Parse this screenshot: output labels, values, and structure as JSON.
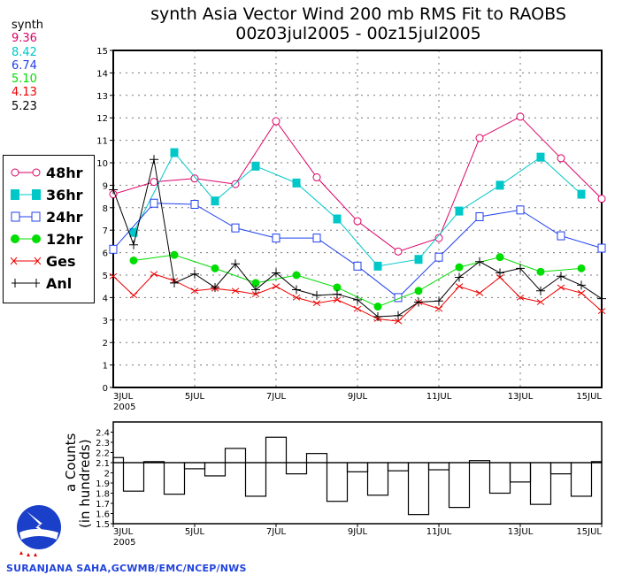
{
  "chart_data": [
    {
      "type": "line",
      "title": "synth Asia Vector Wind 200 mb RMS Fit to RAOBS",
      "subtitle": "00z03jul2005 - 00z15jul2005",
      "xlabel": "",
      "ylabel": "",
      "x_ticks": [
        "3JUL",
        "5JUL",
        "7JUL",
        "9JUL",
        "11JUL",
        "13JUL",
        "15JUL"
      ],
      "x_year_label": "2005",
      "x_range_days": [
        0,
        12
      ],
      "ylim": [
        0,
        15
      ],
      "y_ticks": [
        "0",
        "1",
        "2",
        "3",
        "4",
        "5",
        "6",
        "7",
        "8",
        "9",
        "10",
        "11",
        "12",
        "13",
        "14",
        "15"
      ],
      "grid": true,
      "legend_placement": "left",
      "stats_header": "synth",
      "series": [
        {
          "name": "48hr",
          "mean": "9.36",
          "color": "#dd0066",
          "marker": "open-circle",
          "x": [
            0,
            1,
            2,
            3,
            4,
            5,
            6,
            7,
            8,
            9,
            10,
            11,
            12
          ],
          "values": [
            8.6,
            9.15,
            9.3,
            9.05,
            11.85,
            9.35,
            7.4,
            6.05,
            6.65,
            11.1,
            12.05,
            10.2,
            8.4
          ]
        },
        {
          "name": "36hr",
          "mean": "8.42",
          "color": "#00c8c8",
          "marker": "filled-square",
          "x": [
            0.5,
            1.5,
            2.5,
            3.5,
            4.5,
            5.5,
            6.5,
            7.5,
            8.5,
            9.5,
            10.5,
            11.5
          ],
          "values": [
            6.9,
            10.45,
            8.3,
            9.85,
            9.1,
            7.5,
            5.4,
            5.7,
            7.85,
            9.0,
            10.25,
            8.6
          ]
        },
        {
          "name": "24hr",
          "mean": "6.74",
          "color": "#2040ee",
          "marker": "open-square",
          "x": [
            0,
            1,
            2,
            3,
            4,
            5,
            6,
            7,
            8,
            9,
            10,
            11,
            12
          ],
          "values": [
            6.15,
            8.2,
            8.15,
            7.1,
            6.65,
            6.65,
            5.4,
            4.0,
            5.8,
            7.6,
            7.9,
            6.75,
            6.2
          ]
        },
        {
          "name": "12hr",
          "mean": "5.10",
          "color": "#00dd00",
          "marker": "filled-circle",
          "x": [
            0.5,
            1.5,
            2.5,
            3.5,
            4.5,
            5.5,
            6.5,
            7.5,
            8.5,
            9.5,
            10.5,
            11.5
          ],
          "values": [
            5.65,
            5.9,
            5.3,
            4.65,
            5.0,
            4.45,
            3.6,
            4.3,
            5.35,
            5.8,
            5.15,
            5.3
          ]
        },
        {
          "name": "Ges",
          "mean": "4.13",
          "color": "#ee0000",
          "marker": "x",
          "x": [
            0,
            0.5,
            1,
            1.5,
            2,
            2.5,
            3,
            3.5,
            4,
            4.5,
            5,
            5.5,
            6,
            6.5,
            7,
            7.5,
            8,
            8.5,
            9,
            9.5,
            10,
            10.5,
            11,
            11.5,
            12
          ],
          "values": [
            4.95,
            4.1,
            5.05,
            4.75,
            4.3,
            4.4,
            4.3,
            4.15,
            4.5,
            4.0,
            3.75,
            3.9,
            3.5,
            3.05,
            2.95,
            3.8,
            3.5,
            4.5,
            4.2,
            4.9,
            4.0,
            3.8,
            4.45,
            4.2,
            3.4
          ]
        },
        {
          "name": "Anl",
          "mean": "5.23",
          "color": "#000000",
          "marker": "plus",
          "x": [
            0,
            0.5,
            1,
            1.5,
            2,
            2.5,
            3,
            3.5,
            4,
            4.5,
            5,
            5.5,
            6,
            6.5,
            7,
            7.5,
            8,
            8.5,
            9,
            9.5,
            10,
            10.5,
            11,
            11.5,
            12
          ],
          "values": [
            8.8,
            6.35,
            10.15,
            4.65,
            5.05,
            4.45,
            5.5,
            4.35,
            5.1,
            4.35,
            4.1,
            4.15,
            3.9,
            3.15,
            3.2,
            3.8,
            3.85,
            4.9,
            5.6,
            5.1,
            5.3,
            4.3,
            4.95,
            4.55,
            3.95
          ]
        }
      ]
    },
    {
      "type": "bar",
      "ylabel": "a Counts",
      "ylabel2": "(in hundreds)",
      "ylim": [
        1.5,
        2.5
      ],
      "y_ticks": [
        "1.5",
        "1.6",
        "1.7",
        "1.8",
        "1.9",
        "2",
        "2.1",
        "2.2",
        "2.3",
        "2.4"
      ],
      "reference_line": 2.1,
      "x_ticks": [
        "3JUL",
        "5JUL",
        "7JUL",
        "9JUL",
        "11JUL",
        "13JUL",
        "15JUL"
      ],
      "x_year_label": "2005",
      "x": [
        0,
        0.5,
        1,
        1.5,
        2,
        2.5,
        3,
        3.5,
        4,
        4.5,
        5,
        5.5,
        6,
        6.5,
        7,
        7.5,
        8,
        8.5,
        9,
        9.5,
        10,
        10.5,
        11,
        11.5,
        12
      ],
      "values": [
        2.15,
        1.82,
        2.11,
        1.79,
        2.04,
        1.97,
        2.24,
        1.77,
        2.35,
        1.99,
        2.19,
        1.72,
        2.01,
        1.78,
        2.02,
        1.59,
        2.03,
        1.66,
        2.12,
        1.8,
        1.91,
        1.69,
        1.99,
        1.77,
        2.11
      ]
    }
  ],
  "logo_text": "NATIONAL WEATHER SERVICE",
  "credit": "SURANJANA SAHA,GCWMB/EMC/NCEP/NWS"
}
